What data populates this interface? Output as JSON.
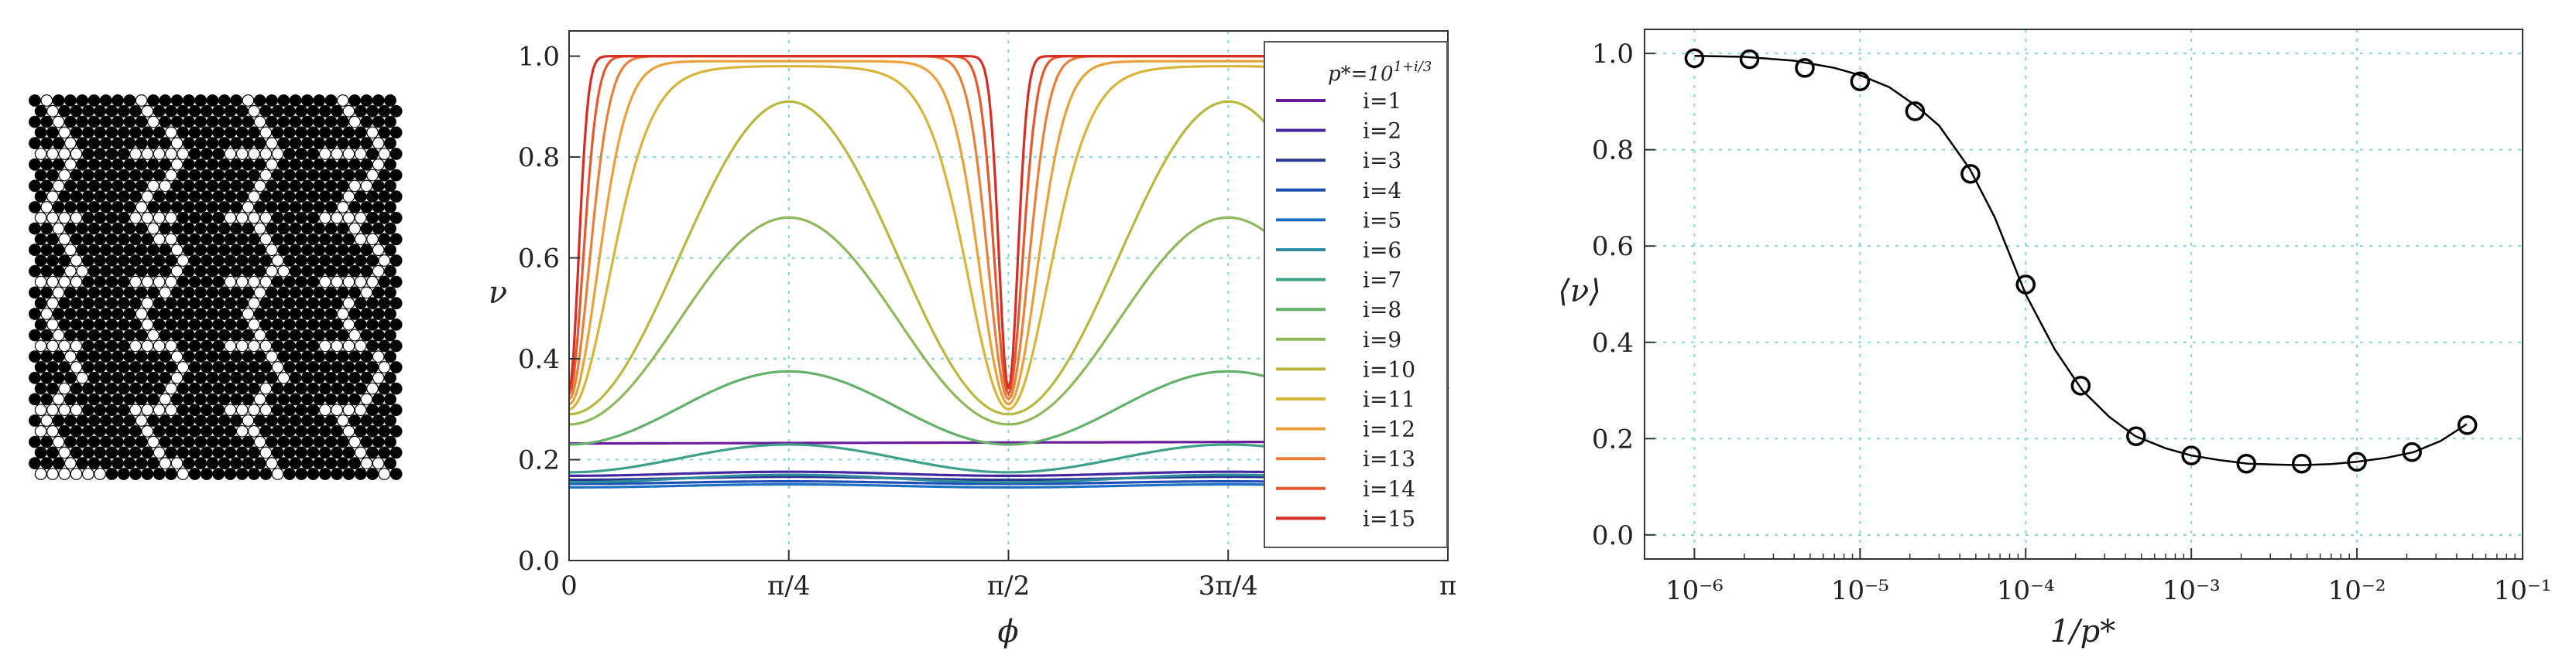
{
  "colors": {
    "lattice_filled": "#000000",
    "lattice_empty": "#ffffff",
    "grid": "#7fd8d0",
    "fit_line": "#000000",
    "series_palette": [
      "#6a1b9a",
      "#4527a0",
      "#283593",
      "#1e4fb5",
      "#1f6fc4",
      "#2e8b99",
      "#3fa08a",
      "#63b06a",
      "#8fb85a",
      "#b8b83e",
      "#d7b43a",
      "#e8a13a",
      "#e8803a",
      "#e45a2e",
      "#d62d25"
    ]
  },
  "chart_data": [
    {
      "type": "image",
      "content": "triangular lattice of filled black disks with white (empty) sites forming zigzag channel stripes"
    },
    {
      "type": "line",
      "title": "",
      "xlabel": "ϕ",
      "ylabel": "ν",
      "xlim": [
        0,
        4
      ],
      "ylim": [
        0,
        1.05
      ],
      "x_tick_labels": [
        "0",
        "π/4",
        "π/2",
        "3π/4",
        "π"
      ],
      "y_ticks": [
        "0.0",
        "0.2",
        "0.4",
        "0.6",
        "0.8",
        "1.0"
      ],
      "grid": true,
      "legend_title": "p*=10^(1+i/3)",
      "legend_position": "right",
      "series": [
        {
          "name": "i=1",
          "color": "#6a1b9a",
          "base": 0.232,
          "amp": 0.004,
          "shape": "flat"
        },
        {
          "name": "i=2",
          "color": "#4527a0",
          "base": 0.168,
          "amp": 0.008,
          "shape": "bump4"
        },
        {
          "name": "i=3",
          "color": "#283593",
          "base": 0.16,
          "amp": 0.006,
          "shape": "bump4"
        },
        {
          "name": "i=4",
          "color": "#1e4fb5",
          "base": 0.152,
          "amp": 0.005,
          "shape": "bump4"
        },
        {
          "name": "i=5",
          "color": "#1f6fc4",
          "base": 0.145,
          "amp": 0.006,
          "shape": "bump4"
        },
        {
          "name": "i=6",
          "color": "#2e8b99",
          "base": 0.155,
          "amp": 0.015,
          "shape": "bump4"
        },
        {
          "name": "i=7",
          "color": "#3fa08a",
          "base": 0.175,
          "amp": 0.055,
          "shape": "bump4"
        },
        {
          "name": "i=8",
          "color": "#63b06a",
          "base": 0.23,
          "amp": 0.145,
          "shape": "bump4"
        },
        {
          "name": "i=9",
          "color": "#8fb85a",
          "base": 0.27,
          "amp": 0.41,
          "shape": "bump4"
        },
        {
          "name": "i=10",
          "color": "#b8b83e",
          "base": 0.29,
          "amp": 0.62,
          "shape": "bump4"
        },
        {
          "name": "i=11",
          "color": "#d7b43a",
          "base": 0.3,
          "amp": 0.68,
          "shape": "sat",
          "k": 6
        },
        {
          "name": "i=12",
          "color": "#e8a13a",
          "base": 0.31,
          "amp": 0.68,
          "shape": "sat",
          "k": 12
        },
        {
          "name": "i=13",
          "color": "#e8803a",
          "base": 0.32,
          "amp": 0.68,
          "shape": "sat",
          "k": 24
        },
        {
          "name": "i=14",
          "color": "#e45a2e",
          "base": 0.33,
          "amp": 0.67,
          "shape": "sat",
          "k": 50
        },
        {
          "name": "i=15",
          "color": "#d62d25",
          "base": 0.34,
          "amp": 0.66,
          "shape": "sat",
          "k": 110
        }
      ]
    },
    {
      "type": "line",
      "title": "",
      "xlabel": "1/p*",
      "ylabel": "⟨ν⟩",
      "x_scale": "log",
      "xlim": [
        5e-07,
        0.1
      ],
      "ylim": [
        -0.05,
        1.05
      ],
      "x_tick_labels": [
        "10⁻⁶",
        "10⁻⁵",
        "10⁻⁴",
        "10⁻³",
        "10⁻²",
        "10⁻¹"
      ],
      "x_tick_values": [
        1e-06,
        1e-05,
        0.0001,
        0.001,
        0.01,
        0.1
      ],
      "y_ticks": [
        "0.0",
        "0.2",
        "0.4",
        "0.6",
        "0.8",
        "1.0"
      ],
      "grid": true,
      "points": {
        "x": [
          1e-06,
          2.15e-06,
          4.64e-06,
          1e-05,
          2.15e-05,
          4.64e-05,
          0.0001,
          0.000215,
          0.000464,
          0.001,
          0.00215,
          0.00464,
          0.01,
          0.0215,
          0.0464
        ],
        "y": [
          0.99,
          0.988,
          0.97,
          0.942,
          0.88,
          0.75,
          0.52,
          0.31,
          0.205,
          0.165,
          0.148,
          0.148,
          0.152,
          0.172,
          0.228
        ]
      },
      "fit_curve": {
        "x": [
          1e-06,
          2e-06,
          4e-06,
          7e-06,
          1e-05,
          1.5e-05,
          2.2e-05,
          3e-05,
          4.6e-05,
          6.5e-05,
          0.0001,
          0.00015,
          0.00022,
          0.00032,
          0.00046,
          0.0007,
          0.001,
          0.0015,
          0.0022,
          0.0032,
          0.0046,
          0.007,
          0.01,
          0.015,
          0.022,
          0.032,
          0.046
        ],
        "y": [
          0.995,
          0.993,
          0.985,
          0.97,
          0.955,
          0.93,
          0.89,
          0.85,
          0.76,
          0.66,
          0.5,
          0.385,
          0.3,
          0.245,
          0.205,
          0.18,
          0.165,
          0.155,
          0.148,
          0.146,
          0.145,
          0.147,
          0.152,
          0.16,
          0.172,
          0.195,
          0.23
        ]
      }
    }
  ]
}
